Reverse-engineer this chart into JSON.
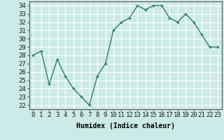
{
  "x": [
    0,
    1,
    2,
    3,
    4,
    5,
    6,
    7,
    8,
    9,
    10,
    11,
    12,
    13,
    14,
    15,
    16,
    17,
    18,
    19,
    20,
    21,
    22,
    23
  ],
  "y": [
    28,
    28.5,
    24.5,
    27.5,
    25.5,
    24,
    23,
    22,
    25.5,
    27,
    31,
    32,
    32.5,
    34,
    33.5,
    34,
    34,
    32.5,
    32,
    33,
    32,
    30.5,
    29,
    29
  ],
  "line_color": "#2e7d6e",
  "marker": "+",
  "bg_color": "#cceae7",
  "grid_color": "#ffffff",
  "xlabel": "Humidex (Indice chaleur)",
  "ylim": [
    21.5,
    34.5
  ],
  "xlim": [
    -0.5,
    23.5
  ],
  "yticks": [
    22,
    23,
    24,
    25,
    26,
    27,
    28,
    29,
    30,
    31,
    32,
    33,
    34
  ],
  "xticks": [
    0,
    1,
    2,
    3,
    4,
    5,
    6,
    7,
    8,
    9,
    10,
    11,
    12,
    13,
    14,
    15,
    16,
    17,
    18,
    19,
    20,
    21,
    22,
    23
  ],
  "font_size_label": 7,
  "font_size_tick": 6.5
}
